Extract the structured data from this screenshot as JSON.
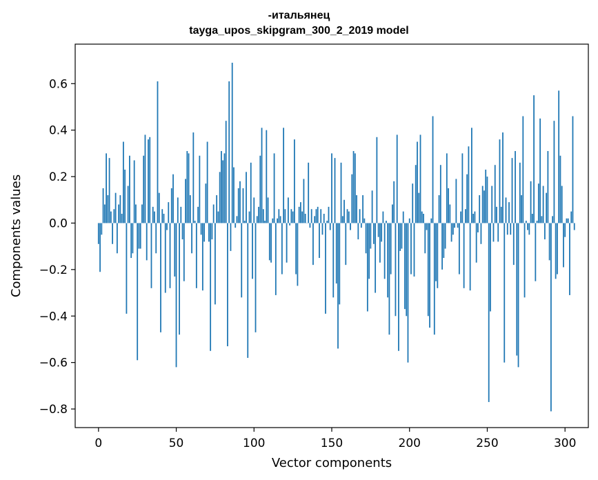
{
  "chart_data": {
    "type": "bar",
    "title": "-итальянец",
    "subtitle": "tayga_upos_skipgram_300_2_2019 model",
    "xlabel": "Vector components",
    "ylabel": "Components values",
    "xlim": [
      -15,
      315
    ],
    "ylim": [
      -0.88,
      0.77
    ],
    "xticks": [
      0,
      50,
      100,
      150,
      200,
      250,
      300
    ],
    "yticks": [
      -0.8,
      -0.6,
      -0.4,
      -0.2,
      0.0,
      0.2,
      0.4,
      0.6
    ],
    "ytick_labels": [
      "−0.8",
      "−0.6",
      "−0.4",
      "−0.2",
      "0.0",
      "0.2",
      "0.4",
      "0.6"
    ],
    "bar_color": "#1f77b4",
    "values": [
      -0.09,
      -0.21,
      -0.05,
      0.15,
      0.08,
      0.3,
      0.12,
      0.28,
      0.05,
      -0.09,
      0.06,
      0.13,
      -0.13,
      0.08,
      0.12,
      0.04,
      0.35,
      0.23,
      -0.39,
      0.16,
      0.29,
      -0.15,
      -0.13,
      0.27,
      0.08,
      -0.59,
      -0.11,
      -0.11,
      0.08,
      0.29,
      0.38,
      -0.16,
      0.36,
      0.37,
      -0.28,
      0.07,
      0.05,
      -0.13,
      0.61,
      0.13,
      -0.47,
      0.06,
      0.04,
      -0.3,
      -0.03,
      0.09,
      -0.28,
      0.15,
      0.21,
      -0.23,
      -0.62,
      0.11,
      -0.48,
      0.07,
      -0.07,
      -0.25,
      0.19,
      0.31,
      0.3,
      0.12,
      -0.13,
      0.39,
      0.01,
      -0.28,
      0.07,
      0.29,
      -0.05,
      -0.29,
      -0.08,
      0.17,
      0.35,
      -0.08,
      -0.55,
      -0.07,
      0.08,
      -0.35,
      0.12,
      0.05,
      0.22,
      0.31,
      0.27,
      0.3,
      0.44,
      -0.53,
      0.61,
      -0.12,
      0.69,
      0.24,
      -0.02,
      0.03,
      0.15,
      0.18,
      -0.32,
      0.15,
      0.01,
      0.22,
      -0.58,
      0.05,
      0.26,
      -0.24,
      0.11,
      -0.47,
      0.03,
      0.07,
      0.29,
      0.41,
      0.06,
      0.01,
      0.4,
      0.11,
      -0.16,
      -0.17,
      0.02,
      0.3,
      -0.31,
      0.02,
      0.06,
      0.03,
      -0.22,
      0.41,
      0.06,
      -0.17,
      0.11,
      -0.01,
      0.06,
      0.05,
      0.36,
      -0.22,
      -0.27,
      0.07,
      0.09,
      0.05,
      0.19,
      0.04,
      0.0,
      0.26,
      -0.02,
      0.06,
      -0.18,
      0.03,
      0.06,
      0.07,
      -0.15,
      0.06,
      -0.05,
      0.04,
      -0.39,
      0.01,
      0.07,
      -0.03,
      0.3,
      -0.32,
      0.28,
      -0.26,
      -0.54,
      -0.35,
      0.26,
      0.03,
      0.1,
      -0.18,
      0.06,
      0.05,
      -0.03,
      0.21,
      0.31,
      0.3,
      0.12,
      -0.07,
      0.06,
      -0.02,
      0.12,
      0.02,
      -0.13,
      -0.38,
      -0.24,
      -0.11,
      0.14,
      -0.09,
      -0.3,
      0.37,
      -0.06,
      -0.17,
      -0.08,
      0.05,
      -0.24,
      0.01,
      -0.32,
      -0.48,
      -0.22,
      0.08,
      0.18,
      -0.4,
      0.38,
      -0.55,
      -0.12,
      -0.11,
      0.05,
      -0.37,
      -0.4,
      -0.6,
      0.02,
      -0.22,
      0.17,
      -0.23,
      0.25,
      0.35,
      0.13,
      0.38,
      0.05,
      0.04,
      -0.13,
      -0.03,
      -0.4,
      -0.45,
      0.02,
      0.46,
      -0.48,
      -0.25,
      -0.28,
      0.12,
      0.25,
      -0.2,
      -0.15,
      -0.11,
      0.3,
      0.15,
      0.08,
      -0.08,
      -0.05,
      -0.02,
      0.19,
      -0.02,
      -0.22,
      0.05,
      0.3,
      -0.28,
      0.06,
      0.21,
      0.33,
      -0.29,
      0.41,
      0.04,
      0.05,
      -0.17,
      -0.04,
      0.12,
      -0.09,
      0.16,
      0.14,
      0.23,
      0.2,
      -0.77,
      -0.38,
      0.16,
      -0.08,
      0.25,
      0.07,
      -0.08,
      0.36,
      0.07,
      0.39,
      -0.6,
      0.11,
      -0.05,
      0.09,
      -0.05,
      0.28,
      -0.18,
      0.31,
      -0.57,
      -0.62,
      0.26,
      0.12,
      0.46,
      -0.32,
      0.01,
      -0.03,
      -0.05,
      0.18,
      0.04,
      0.55,
      -0.25,
      0.01,
      0.17,
      0.45,
      0.03,
      0.16,
      -0.07,
      0.13,
      0.31,
      -0.16,
      -0.81,
      0.03,
      0.44,
      -0.24,
      -0.22,
      0.57,
      0.29,
      0.16,
      -0.19,
      -0.06,
      0.02,
      0.02,
      -0.31,
      0.05,
      0.46,
      -0.03
    ]
  }
}
